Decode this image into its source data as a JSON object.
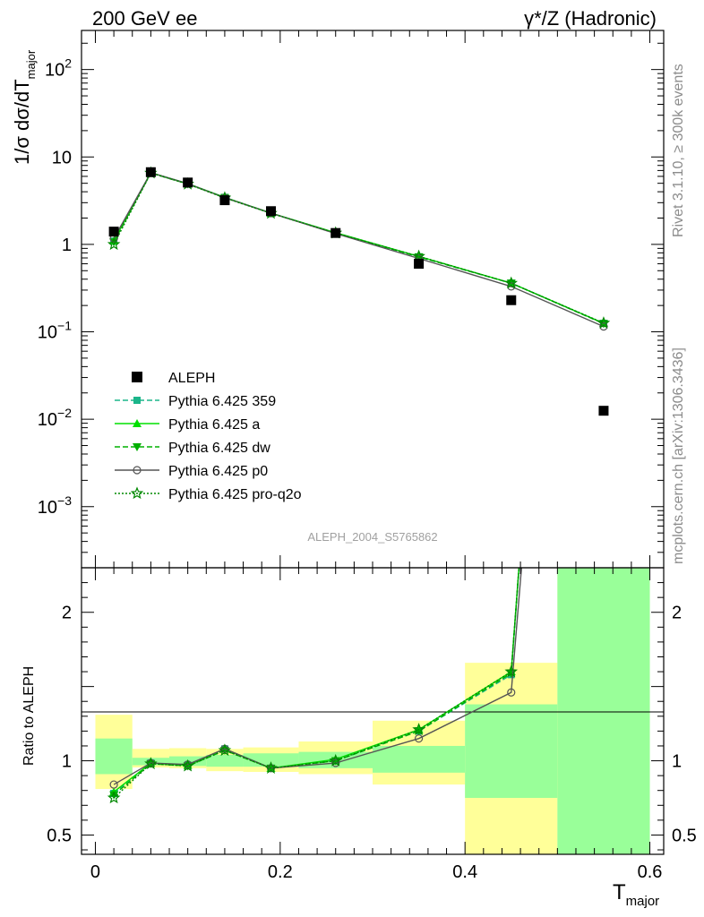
{
  "header": {
    "left": "200 GeV ee",
    "right": "γ*/Z (Hadronic)"
  },
  "side": {
    "rivet": "Rivet 3.1.10, ≥ 300k events",
    "mcplots": "mcplots.cern.ch [arXiv:1306.3436]"
  },
  "watermark": "ALEPH_2004_S5765862",
  "top": {
    "ylabel": "1/σ  dσ/dT",
    "ylabel_sub": "major",
    "yticks": [
      {
        "value": 100,
        "base": "10",
        "exp": "2"
      },
      {
        "value": 10,
        "base": "10",
        "exp": ""
      },
      {
        "value": 1,
        "base": "1",
        "exp": ""
      },
      {
        "value": 0.1,
        "base": "10",
        "exp": "−1"
      },
      {
        "value": 0.01,
        "base": "10",
        "exp": "−2"
      },
      {
        "value": 0.001,
        "base": "10",
        "exp": "−3"
      }
    ]
  },
  "bottom": {
    "ylabel": "Ratio to ALEPH",
    "yticks": [
      {
        "value": 2,
        "label": "2"
      },
      {
        "value": 1,
        "label": "1"
      },
      {
        "value": 0.5,
        "label": "0.5"
      }
    ],
    "xticks": [
      {
        "value": 0,
        "label": "0"
      },
      {
        "value": 0.2,
        "label": "0.2"
      },
      {
        "value": 0.4,
        "label": "0.4"
      },
      {
        "value": 0.6,
        "label": "0.6"
      }
    ],
    "xlabel": "T",
    "xlabel_sub": "major"
  },
  "chart_data": {
    "type": "line",
    "log_y_top": true,
    "ylim_top": [
      0.0002,
      280
    ],
    "ylim_ratio": [
      0.37,
      2.3
    ],
    "xlim": [
      -0.015,
      0.615
    ],
    "legend_position": "left, lower half of top panel",
    "data": {
      "name": "ALEPH",
      "x": [
        0.02,
        0.06,
        0.1,
        0.14,
        0.19,
        0.26,
        0.35,
        0.45,
        0.55
      ],
      "y": [
        1.4,
        6.7,
        5.1,
        3.2,
        2.4,
        1.35,
        0.6,
        0.23,
        0.0125
      ],
      "bins": [
        [
          0.0,
          0.04
        ],
        [
          0.04,
          0.08
        ],
        [
          0.08,
          0.12
        ],
        [
          0.12,
          0.16
        ],
        [
          0.16,
          0.22
        ],
        [
          0.22,
          0.3
        ],
        [
          0.3,
          0.4
        ],
        [
          0.4,
          0.5
        ],
        [
          0.5,
          0.6
        ]
      ],
      "band_stat": [
        [
          0.91,
          1.15
        ],
        [
          0.97,
          1.02
        ],
        [
          0.965,
          1.03
        ],
        [
          0.96,
          1.04
        ],
        [
          0.96,
          1.05
        ],
        [
          0.95,
          1.06
        ],
        [
          0.92,
          1.1
        ],
        [
          0.75,
          1.38
        ],
        [
          0.37,
          2.3
        ]
      ],
      "band_total": [
        [
          0.81,
          1.31
        ],
        [
          0.955,
          1.08
        ],
        [
          0.95,
          1.085
        ],
        [
          0.93,
          1.08
        ],
        [
          0.925,
          1.09
        ],
        [
          0.91,
          1.13
        ],
        [
          0.84,
          1.27
        ],
        [
          0.37,
          1.66
        ],
        [
          0.37,
          2.3
        ]
      ]
    },
    "series": [
      {
        "name": "Pythia 6.425 359",
        "color": "#1bb58a",
        "dash": "6,3",
        "marker": "square",
        "y": [
          1.09,
          6.6,
          4.95,
          3.45,
          2.28,
          1.35,
          0.72,
          0.36,
          0.125
        ],
        "ratio": [
          0.78,
          0.985,
          0.97,
          1.08,
          0.95,
          1.0,
          1.2,
          1.58,
          10.0
        ]
      },
      {
        "name": "Pythia 6.425 a",
        "color": "#00e000",
        "dash": "",
        "marker": "triangle-up",
        "y": [
          1.1,
          6.6,
          4.95,
          3.45,
          2.28,
          1.36,
          0.73,
          0.36,
          0.125
        ],
        "ratio": [
          0.79,
          0.985,
          0.97,
          1.08,
          0.95,
          1.01,
          1.21,
          1.6,
          10.0
        ]
      },
      {
        "name": "Pythia 6.425 dw",
        "color": "#00b000",
        "dash": "6,3",
        "marker": "triangle-down",
        "y": [
          1.06,
          6.55,
          4.9,
          3.42,
          2.27,
          1.35,
          0.72,
          0.36,
          0.124
        ],
        "ratio": [
          0.77,
          0.98,
          0.965,
          1.07,
          0.95,
          1.0,
          1.2,
          1.59,
          10.0
        ]
      },
      {
        "name": "Pythia 6.425 p0",
        "color": "#555555",
        "dash": "",
        "marker": "circle-open",
        "y": [
          1.17,
          6.6,
          4.95,
          3.42,
          2.28,
          1.33,
          0.69,
          0.33,
          0.115
        ],
        "ratio": [
          0.84,
          0.985,
          0.975,
          1.08,
          0.95,
          0.985,
          1.15,
          1.46,
          9.0
        ]
      },
      {
        "name": "Pythia 6.425 pro-q2o",
        "color": "#008800",
        "dash": "2,2",
        "marker": "star-open",
        "y": [
          1.0,
          6.55,
          4.9,
          3.4,
          2.27,
          1.35,
          0.73,
          0.36,
          0.126
        ],
        "ratio": [
          0.75,
          0.98,
          0.965,
          1.07,
          0.95,
          1.0,
          1.21,
          1.6,
          10.0
        ]
      }
    ]
  }
}
